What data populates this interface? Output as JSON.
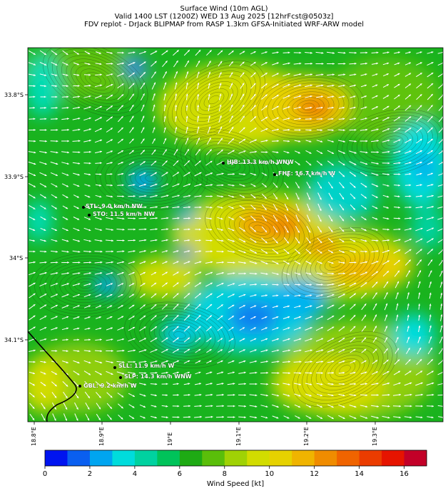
{
  "title": {
    "line1": "Surface Wind (10m AGL)",
    "line2": "Valid 1400 LST (1200Z) WED 13 Aug 2025 [12hrFcst@0503z]",
    "line3": "FDV replot - DrJack BLIPMAP from RASP 1.3km GFSA-Initiated WRF-ARW model"
  },
  "axes": {
    "lat_labels": [
      "33.8°S",
      "33.9°S",
      "34°S",
      "34.1°S"
    ],
    "lon_labels": [
      "18.8°E",
      "18.9°E",
      "19°E",
      "19.1°E",
      "19.2°E",
      "19.3°E"
    ]
  },
  "stations": [
    {
      "id": "HJB",
      "label": "HJB: 13.3 km/h WNW"
    },
    {
      "id": "FHE",
      "label": "FHE: 16.7 km/h W"
    },
    {
      "id": "STL",
      "label": "STL: 9.0 km/h NW"
    },
    {
      "id": "STO",
      "label": "STO: 11.5 km/h NW"
    },
    {
      "id": "SLL",
      "label": "SLL: 11.9 km/h W"
    },
    {
      "id": "SLP",
      "label": "SLP: 14.3 km/h WNW"
    },
    {
      "id": "GBL",
      "label": "GBL: 9.2 km/h W"
    }
  ],
  "colorbar": {
    "label": "Wind Speed [kt]",
    "tick_labels": [
      "0",
      "2",
      "4",
      "6",
      "8",
      "10",
      "12",
      "14",
      "16"
    ],
    "range": [
      0,
      17
    ],
    "colors": [
      "#0014f0",
      "#0a5ff0",
      "#00a5f0",
      "#00dcdc",
      "#00d2a0",
      "#00c35a",
      "#1eaa14",
      "#5abe0a",
      "#a0d205",
      "#d2dc00",
      "#e6d200",
      "#f0b400",
      "#f08c00",
      "#f06400",
      "#eb3c00",
      "#e61400",
      "#c30028"
    ]
  }
}
